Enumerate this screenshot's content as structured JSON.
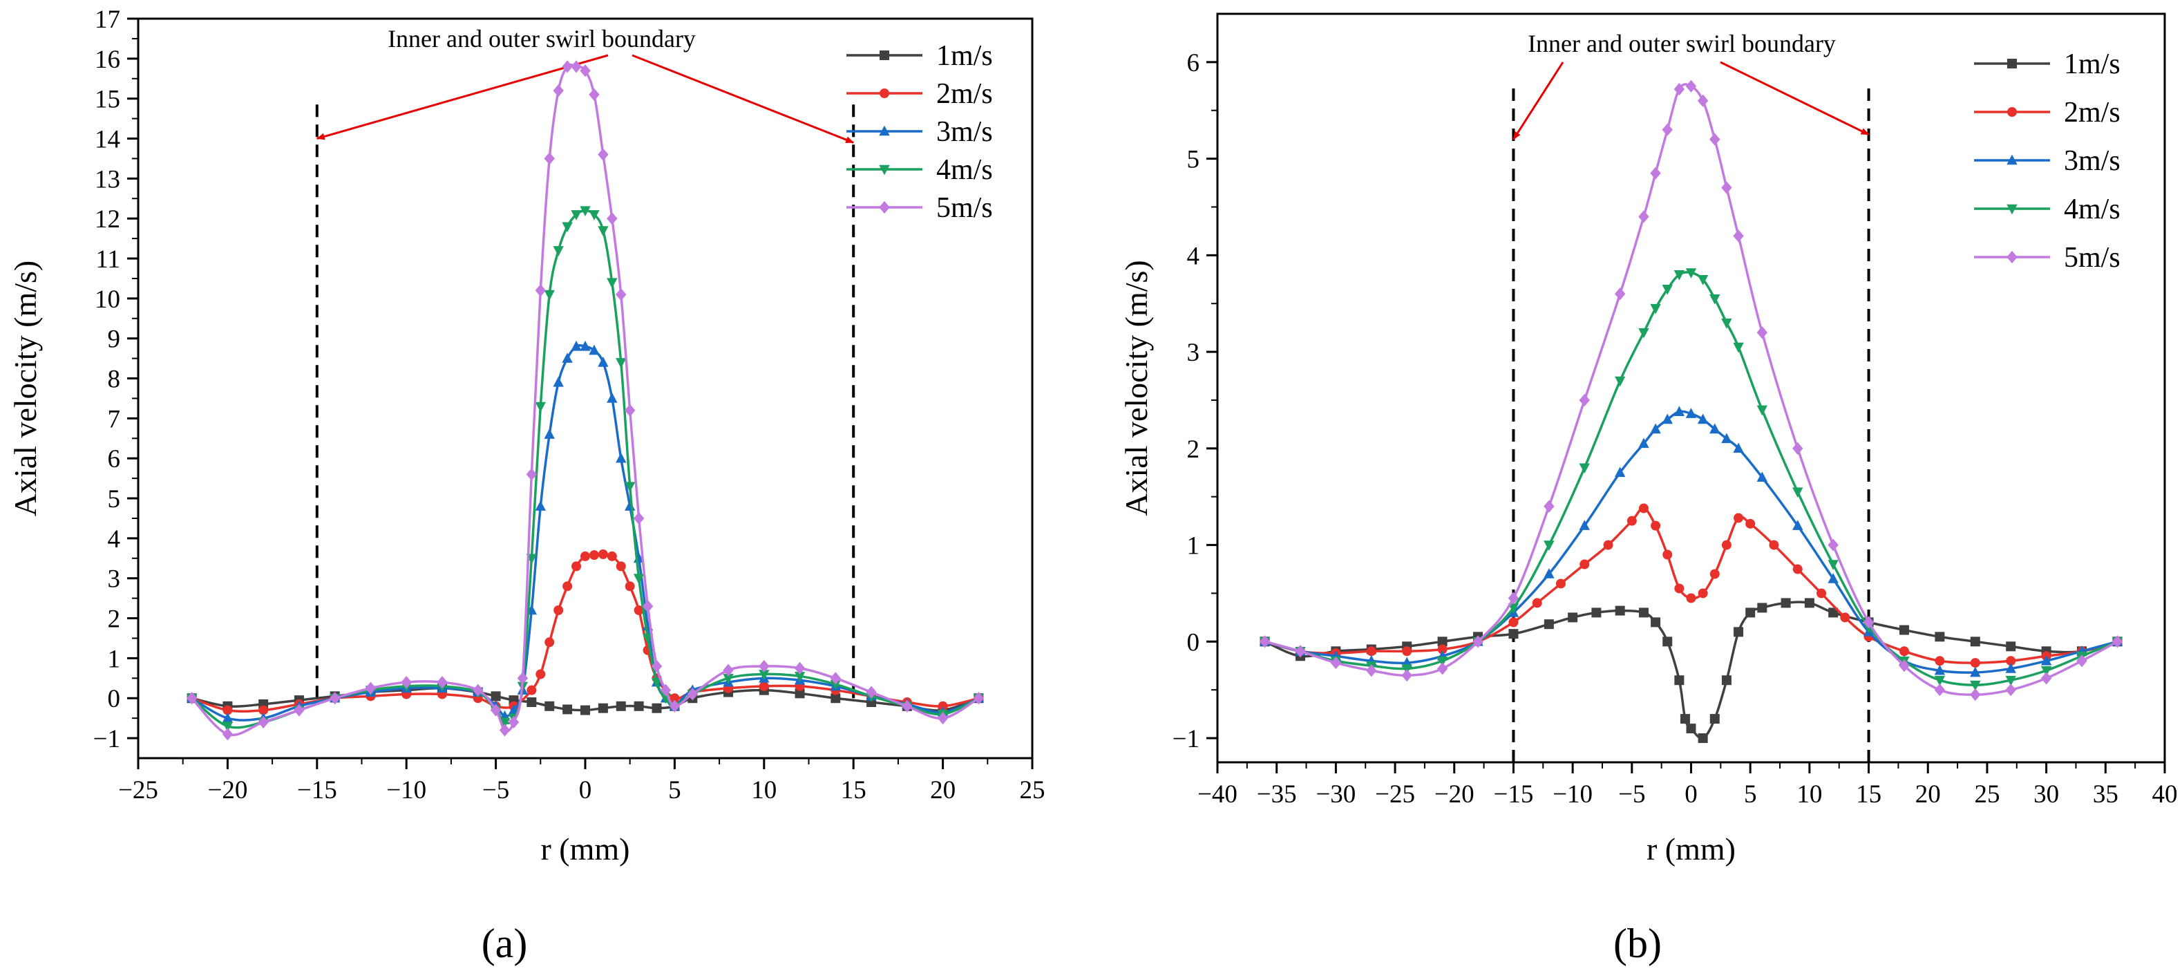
{
  "chart_data": [
    {
      "panel": "(a)",
      "type": "line",
      "xlabel": "r (mm)",
      "ylabel": "Axial velocity (m/s)",
      "xlim": [
        -25,
        25
      ],
      "ylim": [
        -1.5,
        17
      ],
      "xticks": [
        -25,
        -20,
        -15,
        -10,
        -5,
        0,
        5,
        10,
        15,
        20,
        25
      ],
      "yticks": [
        -1,
        0,
        1,
        2,
        3,
        4,
        5,
        6,
        7,
        8,
        9,
        10,
        11,
        12,
        13,
        14,
        15,
        16,
        17
      ],
      "xtick_labels": [
        "−25",
        "−20",
        "−15",
        "−10",
        "−5",
        "0",
        "5",
        "10",
        "15",
        "20",
        "25"
      ],
      "ytick_labels": [
        "−1",
        "0",
        "1",
        "2",
        "3",
        "4",
        "5",
        "6",
        "7",
        "8",
        "9",
        "10",
        "11",
        "12",
        "13",
        "14",
        "15",
        "16",
        "17"
      ],
      "legend_position": "top-right",
      "annotation": {
        "text": "Inner and outer swirl boundary",
        "boundary_x": [
          -15,
          15
        ],
        "boundary_y": [
          0,
          15
        ],
        "arrow_targets": [
          [
            -15,
            14
          ],
          [
            15,
            13.9
          ]
        ]
      },
      "series": [
        {
          "name": "1m/s",
          "color": "#404040",
          "marker": "square",
          "x": [
            -22,
            -20,
            -18,
            -16,
            -14,
            -12,
            -10,
            -8,
            -6,
            -5,
            -4,
            -3,
            -2,
            -1,
            0,
            1,
            2,
            3,
            4,
            5,
            6,
            8,
            10,
            12,
            14,
            16,
            18,
            20,
            22
          ],
          "y": [
            0,
            -0.2,
            -0.15,
            -0.05,
            0.05,
            0.15,
            0.2,
            0.25,
            0.15,
            0.05,
            -0.05,
            -0.1,
            -0.2,
            -0.28,
            -0.3,
            -0.25,
            -0.2,
            -0.2,
            -0.25,
            -0.2,
            0,
            0.15,
            0.2,
            0.12,
            0,
            -0.1,
            -0.2,
            -0.3,
            0
          ]
        },
        {
          "name": "2m/s",
          "color": "#e8312a",
          "marker": "circle",
          "x": [
            -22,
            -20,
            -18,
            -16,
            -14,
            -12,
            -10,
            -8,
            -6,
            -5,
            -4,
            -3,
            -2.5,
            -2,
            -1.5,
            -1,
            -0.5,
            0,
            0.5,
            1,
            1.5,
            2,
            2.5,
            3,
            3.5,
            4,
            5,
            6,
            8,
            10,
            12,
            14,
            16,
            18,
            20,
            22
          ],
          "y": [
            0,
            -0.3,
            -0.3,
            -0.15,
            0,
            0.05,
            0.1,
            0.1,
            0,
            -0.2,
            -0.2,
            0.2,
            0.6,
            1.4,
            2.2,
            2.8,
            3.3,
            3.55,
            3.58,
            3.6,
            3.55,
            3.3,
            2.8,
            2.2,
            1.2,
            0.5,
            0,
            0.15,
            0.25,
            0.3,
            0.3,
            0.2,
            0.05,
            -0.1,
            -0.2,
            0
          ]
        },
        {
          "name": "3m/s",
          "color": "#1a6cc9",
          "marker": "triangle-up",
          "x": [
            -22,
            -20,
            -18,
            -16,
            -14,
            -12,
            -10,
            -8,
            -6,
            -5,
            -4.5,
            -4,
            -3.5,
            -3,
            -2.5,
            -2,
            -1.5,
            -1,
            -0.5,
            0,
            0.5,
            1,
            1.5,
            2,
            2.5,
            3,
            3.5,
            4,
            4.5,
            5,
            6,
            8,
            10,
            12,
            14,
            16,
            18,
            20,
            22
          ],
          "y": [
            0,
            -0.5,
            -0.5,
            -0.2,
            0,
            0.15,
            0.25,
            0.25,
            0.15,
            -0.2,
            -0.45,
            -0.3,
            0.2,
            2.2,
            4.8,
            6.6,
            7.9,
            8.5,
            8.8,
            8.8,
            8.7,
            8.4,
            7.5,
            6,
            4.8,
            3.5,
            1.8,
            0.4,
            0,
            -0.2,
            0.2,
            0.4,
            0.5,
            0.45,
            0.3,
            0.05,
            -0.15,
            -0.35,
            0
          ]
        },
        {
          "name": "4m/s",
          "color": "#1aa05f",
          "marker": "triangle-down",
          "x": [
            -22,
            -20,
            -18,
            -16,
            -14,
            -12,
            -10,
            -8,
            -6,
            -5,
            -4.5,
            -4,
            -3.5,
            -3,
            -2.5,
            -2,
            -1.5,
            -1,
            -0.5,
            0,
            0.5,
            1,
            1.5,
            2,
            2.5,
            3,
            3.5,
            4,
            4.5,
            5,
            6,
            8,
            10,
            12,
            14,
            16,
            18,
            20,
            22
          ],
          "y": [
            0,
            -0.7,
            -0.6,
            -0.3,
            0,
            0.2,
            0.3,
            0.3,
            0.15,
            -0.3,
            -0.6,
            -0.5,
            0.3,
            3.5,
            7.3,
            10.1,
            11.2,
            11.8,
            12.1,
            12.2,
            12.1,
            11.7,
            10.4,
            8.4,
            5.3,
            3,
            1.5,
            0.4,
            0,
            -0.2,
            0.1,
            0.5,
            0.6,
            0.55,
            0.35,
            0.05,
            -0.2,
            -0.4,
            0
          ]
        },
        {
          "name": "5m/s",
          "color": "#c27ae0",
          "marker": "diamond",
          "x": [
            -22,
            -20,
            -18,
            -16,
            -14,
            -12,
            -10,
            -8,
            -6,
            -5,
            -4.5,
            -4,
            -3.5,
            -3,
            -2.5,
            -2,
            -1.5,
            -1,
            -0.5,
            0,
            0.5,
            1,
            1.5,
            2,
            2.5,
            3,
            3.5,
            4,
            4.5,
            5,
            6,
            8,
            10,
            12,
            14,
            16,
            18,
            20,
            22
          ],
          "y": [
            0,
            -0.9,
            -0.6,
            -0.3,
            0,
            0.25,
            0.4,
            0.4,
            0.2,
            -0.3,
            -0.8,
            -0.6,
            0.5,
            5.6,
            10.2,
            13.5,
            15.2,
            15.8,
            15.8,
            15.7,
            15.1,
            13.6,
            12,
            10.1,
            7.2,
            4.5,
            2.3,
            0.8,
            0.2,
            -0.2,
            0.1,
            0.7,
            0.8,
            0.75,
            0.5,
            0.15,
            -0.2,
            -0.5,
            0
          ]
        }
      ]
    },
    {
      "panel": "(b)",
      "type": "line",
      "xlabel": "r (mm)",
      "ylabel": "Axial velocity (m/s)",
      "xlim": [
        -40,
        40
      ],
      "ylim": [
        -1.25,
        6.5
      ],
      "xticks": [
        -40,
        -35,
        -30,
        -25,
        -20,
        -15,
        -10,
        -5,
        0,
        5,
        10,
        15,
        20,
        25,
        30,
        35,
        40
      ],
      "yticks": [
        -1,
        0,
        1,
        2,
        3,
        4,
        5,
        6
      ],
      "xtick_labels": [
        "−40",
        "−35",
        "−30",
        "−25",
        "−20",
        "−15",
        "−10",
        "−5",
        "0",
        "5",
        "10",
        "15",
        "20",
        "25",
        "30",
        "35",
        "40"
      ],
      "ytick_labels": [
        "−1",
        "0",
        "1",
        "2",
        "3",
        "4",
        "5",
        "6"
      ],
      "legend_position": "top-right",
      "annotation": {
        "text": "Inner and outer swirl boundary",
        "boundary_x": [
          -15,
          15
        ],
        "boundary_y": [
          -1.25,
          5.75
        ],
        "arrow_targets": [
          [
            -15,
            5.2
          ],
          [
            15,
            5.25
          ]
        ]
      },
      "series": [
        {
          "name": "1m/s",
          "color": "#404040",
          "marker": "square",
          "x": [
            -36,
            -33,
            -30,
            -27,
            -24,
            -21,
            -18,
            -15,
            -12,
            -10,
            -8,
            -6,
            -4,
            -3,
            -2,
            -1,
            -0.5,
            0,
            1,
            2,
            3,
            4,
            5,
            6,
            8,
            10,
            12,
            15,
            18,
            21,
            24,
            27,
            30,
            33,
            36
          ],
          "y": [
            0,
            -0.15,
            -0.1,
            -0.08,
            -0.05,
            0,
            0.05,
            0.08,
            0.18,
            0.25,
            0.3,
            0.32,
            0.3,
            0.2,
            0,
            -0.4,
            -0.8,
            -0.9,
            -1.0,
            -0.8,
            -0.4,
            0.1,
            0.3,
            0.35,
            0.4,
            0.4,
            0.3,
            0.2,
            0.12,
            0.05,
            0,
            -0.05,
            -0.1,
            -0.1,
            0
          ]
        },
        {
          "name": "2m/s",
          "color": "#e8312a",
          "marker": "circle",
          "x": [
            -36,
            -33,
            -30,
            -27,
            -24,
            -21,
            -18,
            -15,
            -13,
            -11,
            -9,
            -7,
            -5,
            -4,
            -3,
            -2,
            -1,
            0,
            1,
            2,
            3,
            4,
            5,
            7,
            9,
            11,
            13,
            15,
            18,
            21,
            24,
            27,
            30,
            33,
            36
          ],
          "y": [
            0,
            -0.1,
            -0.12,
            -0.1,
            -0.1,
            -0.08,
            0,
            0.2,
            0.4,
            0.6,
            0.8,
            1.0,
            1.25,
            1.38,
            1.2,
            0.9,
            0.55,
            0.45,
            0.5,
            0.7,
            1.0,
            1.28,
            1.22,
            1.0,
            0.75,
            0.5,
            0.25,
            0.05,
            -0.1,
            -0.2,
            -0.22,
            -0.2,
            -0.15,
            -0.1,
            0
          ]
        },
        {
          "name": "3m/s",
          "color": "#1a6cc9",
          "marker": "triangle-up",
          "x": [
            -36,
            -33,
            -30,
            -27,
            -24,
            -21,
            -18,
            -15,
            -12,
            -9,
            -6,
            -4,
            -3,
            -2,
            -1,
            0,
            1,
            2,
            3,
            4,
            6,
            9,
            12,
            15,
            18,
            21,
            24,
            27,
            30,
            33,
            36
          ],
          "y": [
            0,
            -0.1,
            -0.15,
            -0.2,
            -0.22,
            -0.15,
            0,
            0.3,
            0.7,
            1.2,
            1.75,
            2.05,
            2.2,
            2.3,
            2.38,
            2.36,
            2.3,
            2.2,
            2.1,
            2.0,
            1.7,
            1.2,
            0.65,
            0.1,
            -0.2,
            -0.3,
            -0.32,
            -0.28,
            -0.2,
            -0.1,
            0
          ]
        },
        {
          "name": "4m/s",
          "color": "#1aa05f",
          "marker": "triangle-down",
          "x": [
            -36,
            -33,
            -30,
            -27,
            -24,
            -21,
            -18,
            -15,
            -12,
            -9,
            -6,
            -4,
            -3,
            -2,
            -1,
            0,
            1,
            2,
            3,
            4,
            6,
            9,
            12,
            15,
            18,
            21,
            24,
            27,
            30,
            33,
            36
          ],
          "y": [
            0,
            -0.1,
            -0.2,
            -0.25,
            -0.28,
            -0.2,
            0,
            0.35,
            1.0,
            1.8,
            2.7,
            3.2,
            3.45,
            3.65,
            3.8,
            3.82,
            3.75,
            3.55,
            3.3,
            3.05,
            2.4,
            1.55,
            0.8,
            0.15,
            -0.2,
            -0.4,
            -0.45,
            -0.4,
            -0.3,
            -0.15,
            0
          ]
        },
        {
          "name": "5m/s",
          "color": "#c27ae0",
          "marker": "diamond",
          "x": [
            -36,
            -33,
            -30,
            -27,
            -24,
            -21,
            -18,
            -15,
            -12,
            -9,
            -6,
            -4,
            -3,
            -2,
            -1,
            0,
            1,
            2,
            3,
            4,
            6,
            9,
            12,
            15,
            18,
            21,
            24,
            27,
            30,
            33,
            36
          ],
          "y": [
            0,
            -0.1,
            -0.22,
            -0.3,
            -0.35,
            -0.28,
            0,
            0.45,
            1.4,
            2.5,
            3.6,
            4.4,
            4.85,
            5.3,
            5.72,
            5.75,
            5.6,
            5.2,
            4.7,
            4.2,
            3.2,
            2.0,
            1.0,
            0.2,
            -0.25,
            -0.5,
            -0.55,
            -0.5,
            -0.38,
            -0.2,
            0
          ]
        }
      ]
    }
  ]
}
